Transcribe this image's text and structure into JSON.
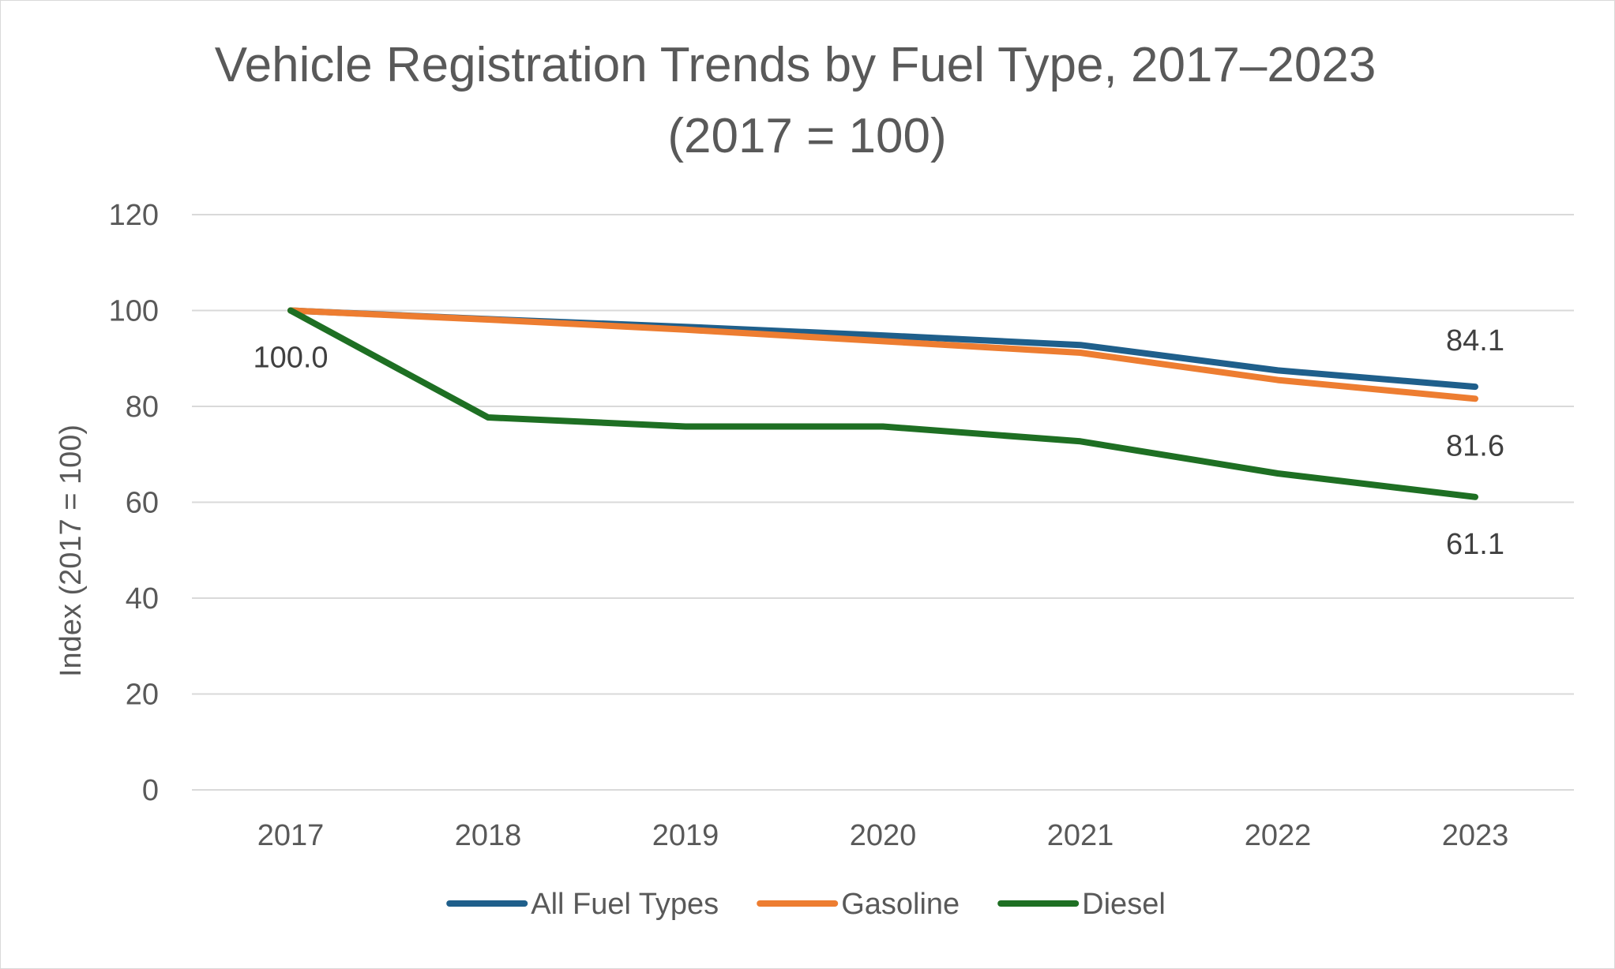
{
  "chart_data": {
    "type": "line",
    "title": "Vehicle Registration Trends by Fuel Type, 2017–2023",
    "title_line2": "(2017 = 100)",
    "xlabel": "",
    "ylabel": "Index (2017 = 100)",
    "categories": [
      "2017",
      "2018",
      "2019",
      "2020",
      "2021",
      "2022",
      "2023"
    ],
    "ylim": [
      0,
      120
    ],
    "yticks": [
      0,
      20,
      40,
      60,
      80,
      100,
      120
    ],
    "grid": true,
    "legend_position": "bottom",
    "series": [
      {
        "name": "All Fuel Types",
        "color": "#1f5f8b",
        "values": [
          100.0,
          98.2,
          96.6,
          94.8,
          92.8,
          87.5,
          84.1
        ]
      },
      {
        "name": "Gasoline",
        "color": "#ed7d31",
        "values": [
          100.0,
          98.1,
          96.0,
          93.6,
          91.2,
          85.5,
          81.6
        ]
      },
      {
        "name": "Diesel",
        "color": "#1e6f23",
        "values": [
          100.0,
          77.7,
          75.8,
          75.8,
          72.7,
          66.0,
          61.1
        ]
      }
    ],
    "data_labels": [
      {
        "series": "Diesel",
        "category": "2017",
        "text": "100.0",
        "placement": "below"
      },
      {
        "series": "All Fuel Types",
        "category": "2023",
        "text": "84.1",
        "placement": "above"
      },
      {
        "series": "Gasoline",
        "category": "2023",
        "text": "81.6",
        "placement": "below"
      },
      {
        "series": "Diesel",
        "category": "2023",
        "text": "61.1",
        "placement": "below"
      }
    ]
  }
}
